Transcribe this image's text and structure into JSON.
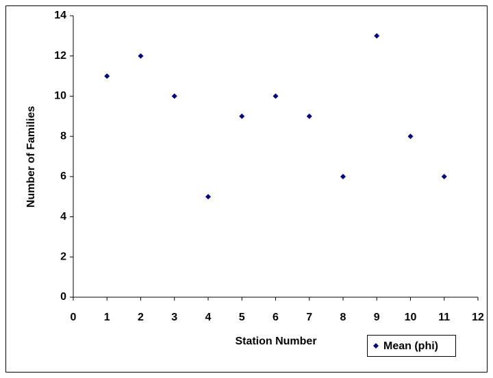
{
  "chart_data": {
    "type": "scatter",
    "x_label": "Station Number",
    "y_label": "Number of Families",
    "series": [
      {
        "name": "Mean (phi)",
        "color": "#000080",
        "x": [
          1,
          2,
          3,
          4,
          5,
          6,
          7,
          8,
          9,
          10,
          11
        ],
        "values": [
          11,
          12,
          10,
          5,
          9,
          10,
          9,
          6,
          13,
          8,
          6
        ]
      }
    ],
    "xlim": [
      0,
      12
    ],
    "xticks": [
      0,
      1,
      2,
      3,
      4,
      5,
      6,
      7,
      8,
      9,
      10,
      11,
      12
    ],
    "ylim": [
      0,
      14
    ],
    "yticks": [
      0,
      2,
      4,
      6,
      8,
      10,
      12,
      14
    ],
    "grid": false,
    "legend": "bottom-right"
  }
}
